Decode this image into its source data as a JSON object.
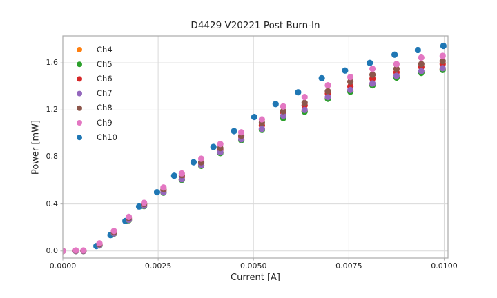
{
  "figure": {
    "background": "#ffffff"
  },
  "chart_data": {
    "type": "scatter",
    "title": "D4429 V20221 Post Burn-In",
    "xlabel": "Current [A]",
    "ylabel": "Power [mW]",
    "xlim": [
      0,
      0.0101
    ],
    "ylim": [
      -0.06,
      1.83
    ],
    "x_ticks": [
      0.0,
      0.0025,
      0.005,
      0.0075,
      0.01
    ],
    "x_tick_labels": [
      "0.0000",
      "0.0025",
      "0.0050",
      "0.0075",
      "0.0100"
    ],
    "y_ticks": [
      0.0,
      0.4,
      0.8,
      1.2,
      1.6
    ],
    "y_tick_labels": [
      "0.0",
      "0.4",
      "0.8",
      "1.2",
      "1.6"
    ],
    "grid": true,
    "legend_position": "upper left",
    "legend_frame": false,
    "marker": "circle",
    "marker_radius_px": 4.6,
    "series": [
      {
        "name": "Ch4",
        "color": "#ff7f0e",
        "z_order": 1,
        "x": [
          0.0,
          0.00034,
          0.00054,
          0.00096,
          0.00134,
          0.00173,
          0.00213,
          0.00264,
          0.00312,
          0.00363,
          0.00413,
          0.00468,
          0.00522,
          0.00578,
          0.00634,
          0.00695,
          0.00754,
          0.00812,
          0.00875,
          0.0094,
          0.00996
        ],
        "y": [
          0.0,
          0.0,
          0.0,
          0.049,
          0.149,
          0.263,
          0.383,
          0.498,
          0.607,
          0.726,
          0.836,
          0.945,
          1.033,
          1.133,
          1.19,
          1.3,
          1.36,
          1.415,
          1.48,
          1.52,
          1.545
        ]
      },
      {
        "name": "Ch5",
        "color": "#2ca02c",
        "z_order": 2,
        "x": [
          0.0,
          0.00034,
          0.00054,
          0.00096,
          0.00134,
          0.00173,
          0.00213,
          0.00264,
          0.00312,
          0.00363,
          0.00413,
          0.00468,
          0.00522,
          0.00578,
          0.00634,
          0.00695,
          0.00754,
          0.00812,
          0.00875,
          0.0094,
          0.00996
        ],
        "y": [
          0.0,
          0.0,
          0.0,
          0.048,
          0.148,
          0.262,
          0.382,
          0.496,
          0.605,
          0.724,
          0.833,
          0.942,
          1.03,
          1.13,
          1.185,
          1.295,
          1.355,
          1.41,
          1.475,
          1.515,
          1.54
        ]
      },
      {
        "name": "Ch6",
        "color": "#d62728",
        "z_order": 3,
        "x": [
          0.0,
          0.00034,
          0.00054,
          0.00096,
          0.00134,
          0.00173,
          0.00213,
          0.00264,
          0.00312,
          0.00363,
          0.00413,
          0.00468,
          0.00522,
          0.00578,
          0.00634,
          0.00695,
          0.00754,
          0.00812,
          0.00875,
          0.0094,
          0.00996
        ],
        "y": [
          0.0,
          0.002,
          0.002,
          0.053,
          0.155,
          0.272,
          0.395,
          0.515,
          0.63,
          0.745,
          0.86,
          0.97,
          1.07,
          1.18,
          1.24,
          1.34,
          1.4,
          1.465,
          1.52,
          1.565,
          1.59
        ]
      },
      {
        "name": "Ch7",
        "color": "#9467bd",
        "z_order": 4,
        "x": [
          0.0,
          0.00034,
          0.00054,
          0.00096,
          0.00134,
          0.00173,
          0.00213,
          0.00264,
          0.00312,
          0.00363,
          0.00413,
          0.00468,
          0.00522,
          0.00578,
          0.00634,
          0.00695,
          0.00754,
          0.00812,
          0.00875,
          0.0094,
          0.00996
        ],
        "y": [
          0.0,
          0.0,
          0.0,
          0.05,
          0.15,
          0.265,
          0.385,
          0.5,
          0.61,
          0.73,
          0.84,
          0.95,
          1.04,
          1.15,
          1.2,
          1.31,
          1.37,
          1.425,
          1.49,
          1.53,
          1.555
        ]
      },
      {
        "name": "Ch8",
        "color": "#8c564b",
        "z_order": 5,
        "x": [
          0.0,
          0.00034,
          0.00054,
          0.00096,
          0.00134,
          0.00173,
          0.00213,
          0.00264,
          0.00312,
          0.00363,
          0.00413,
          0.00468,
          0.00522,
          0.00578,
          0.00634,
          0.00695,
          0.00754,
          0.00812,
          0.00875,
          0.0094,
          0.00996
        ],
        "y": [
          0.0,
          0.003,
          0.003,
          0.058,
          0.16,
          0.28,
          0.4,
          0.525,
          0.645,
          0.755,
          0.875,
          0.98,
          1.09,
          1.19,
          1.26,
          1.36,
          1.44,
          1.5,
          1.55,
          1.59,
          1.615
        ]
      },
      {
        "name": "Ch9",
        "color": "#e377c2",
        "z_order": 6,
        "x": [
          0.0,
          0.00034,
          0.00054,
          0.00096,
          0.00134,
          0.00173,
          0.00213,
          0.00264,
          0.00312,
          0.00363,
          0.00413,
          0.00468,
          0.00522,
          0.00578,
          0.00634,
          0.00695,
          0.00754,
          0.00812,
          0.00875,
          0.0094,
          0.00996
        ],
        "y": [
          0.0,
          0.005,
          0.005,
          0.065,
          0.17,
          0.29,
          0.41,
          0.54,
          0.66,
          0.785,
          0.91,
          1.01,
          1.12,
          1.23,
          1.31,
          1.41,
          1.48,
          1.55,
          1.59,
          1.645,
          1.66
        ]
      },
      {
        "name": "Ch10",
        "color": "#1f77b4",
        "z_order": 0,
        "x": [
          0.0,
          0.00034,
          0.00054,
          0.00088,
          0.00125,
          0.00164,
          0.002,
          0.00247,
          0.00292,
          0.00343,
          0.00395,
          0.00449,
          0.00502,
          0.00558,
          0.00617,
          0.00679,
          0.0074,
          0.00805,
          0.0087,
          0.00931,
          0.00998
        ],
        "y": [
          0.0,
          0.0,
          0.0,
          0.042,
          0.135,
          0.255,
          0.378,
          0.5,
          0.64,
          0.755,
          0.885,
          1.02,
          1.14,
          1.25,
          1.35,
          1.47,
          1.535,
          1.6,
          1.67,
          1.71,
          1.745
        ]
      }
    ],
    "colors": {
      "grid": "#d9d9d9",
      "spine": "#aaaaaa",
      "tick": "#b0b0b0",
      "text": "#262626"
    }
  }
}
